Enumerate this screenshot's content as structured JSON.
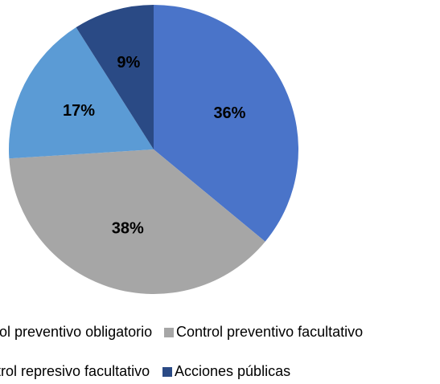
{
  "chart_data": {
    "type": "pie",
    "categories": [
      "Control preventivo obligatorio",
      "Control preventivo facultativo",
      "Control represivo facultativo",
      "Acciones públicas"
    ],
    "values": [
      36,
      38,
      17,
      9
    ],
    "value_labels": [
      "36%",
      "38%",
      "17%",
      "9%"
    ],
    "colors": [
      "#4a74c9",
      "#a6a6a6",
      "#5b9bd5",
      "#2a4a85"
    ],
    "legend": "bottom"
  }
}
